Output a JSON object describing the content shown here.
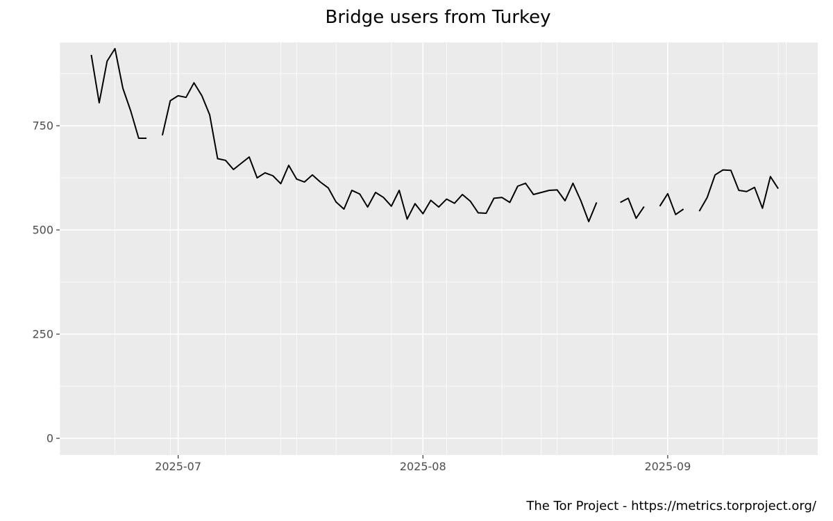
{
  "chart_data": {
    "type": "line",
    "title": "Bridge users from Turkey",
    "xlabel": "",
    "ylabel": "",
    "caption": "The Tor Project - https://metrics.torproject.org/",
    "x_ticks": [
      "2025-07",
      "2025-08",
      "2025-09"
    ],
    "y_ticks": [
      0,
      250,
      500,
      750
    ],
    "xlim": [
      "2025-06-16",
      "2025-09-20"
    ],
    "ylim": [
      -40,
      950
    ],
    "grid": true,
    "legend": "none",
    "series": [
      {
        "color": "#000000",
        "points": [
          [
            "2025-06-20",
            920
          ],
          [
            "2025-06-21",
            805
          ],
          [
            "2025-06-22",
            905
          ],
          [
            "2025-06-23",
            935
          ],
          [
            "2025-06-24",
            840
          ],
          [
            "2025-06-25",
            785
          ],
          [
            "2025-06-26",
            720
          ],
          [
            "2025-06-27",
            720
          ],
          [
            "2025-06-28",
            null
          ],
          [
            "2025-06-29",
            727
          ],
          [
            "2025-06-30",
            810
          ],
          [
            "2025-07-01",
            822
          ],
          [
            "2025-07-02",
            818
          ],
          [
            "2025-07-03",
            853
          ],
          [
            "2025-07-04",
            822
          ],
          [
            "2025-07-05",
            776
          ],
          [
            "2025-07-06",
            671
          ],
          [
            "2025-07-07",
            667
          ],
          [
            "2025-07-08",
            645
          ],
          [
            "2025-07-09",
            660
          ],
          [
            "2025-07-10",
            675
          ],
          [
            "2025-07-11",
            625
          ],
          [
            "2025-07-12",
            637
          ],
          [
            "2025-07-13",
            630
          ],
          [
            "2025-07-14",
            611
          ],
          [
            "2025-07-15",
            655
          ],
          [
            "2025-07-16",
            622
          ],
          [
            "2025-07-17",
            615
          ],
          [
            "2025-07-18",
            632
          ],
          [
            "2025-07-19",
            615
          ],
          [
            "2025-07-20",
            601
          ],
          [
            "2025-07-21",
            567
          ],
          [
            "2025-07-22",
            550
          ],
          [
            "2025-07-23",
            595
          ],
          [
            "2025-07-24",
            586
          ],
          [
            "2025-07-25",
            555
          ],
          [
            "2025-07-26",
            590
          ],
          [
            "2025-07-27",
            578
          ],
          [
            "2025-07-28",
            557
          ],
          [
            "2025-07-29",
            595
          ],
          [
            "2025-07-30",
            526
          ],
          [
            "2025-07-31",
            563
          ],
          [
            "2025-08-01",
            539
          ],
          [
            "2025-08-02",
            571
          ],
          [
            "2025-08-03",
            555
          ],
          [
            "2025-08-04",
            574
          ],
          [
            "2025-08-05",
            564
          ],
          [
            "2025-08-06",
            585
          ],
          [
            "2025-08-07",
            569
          ],
          [
            "2025-08-08",
            541
          ],
          [
            "2025-08-09",
            540
          ],
          [
            "2025-08-10",
            576
          ],
          [
            "2025-08-11",
            578
          ],
          [
            "2025-08-12",
            566
          ],
          [
            "2025-08-13",
            605
          ],
          [
            "2025-08-14",
            612
          ],
          [
            "2025-08-15",
            585
          ],
          [
            "2025-08-16",
            590
          ],
          [
            "2025-08-17",
            595
          ],
          [
            "2025-08-18",
            596
          ],
          [
            "2025-08-19",
            570
          ],
          [
            "2025-08-20",
            612
          ],
          [
            "2025-08-21",
            570
          ],
          [
            "2025-08-22",
            520
          ],
          [
            "2025-08-23",
            566
          ],
          [
            "2025-08-24",
            null
          ],
          [
            "2025-08-25",
            null
          ],
          [
            "2025-08-26",
            566
          ],
          [
            "2025-08-27",
            576
          ],
          [
            "2025-08-28",
            528
          ],
          [
            "2025-08-29",
            556
          ],
          [
            "2025-08-30",
            null
          ],
          [
            "2025-08-31",
            557
          ],
          [
            "2025-09-01",
            587
          ],
          [
            "2025-09-02",
            537
          ],
          [
            "2025-09-03",
            550
          ],
          [
            "2025-09-04",
            null
          ],
          [
            "2025-09-05",
            545
          ],
          [
            "2025-09-06",
            578
          ],
          [
            "2025-09-07",
            632
          ],
          [
            "2025-09-08",
            644
          ],
          [
            "2025-09-09",
            643
          ],
          [
            "2025-09-10",
            595
          ],
          [
            "2025-09-11",
            592
          ],
          [
            "2025-09-12",
            602
          ],
          [
            "2025-09-13",
            552
          ],
          [
            "2025-09-14",
            628
          ],
          [
            "2025-09-15",
            599
          ]
        ]
      }
    ]
  }
}
